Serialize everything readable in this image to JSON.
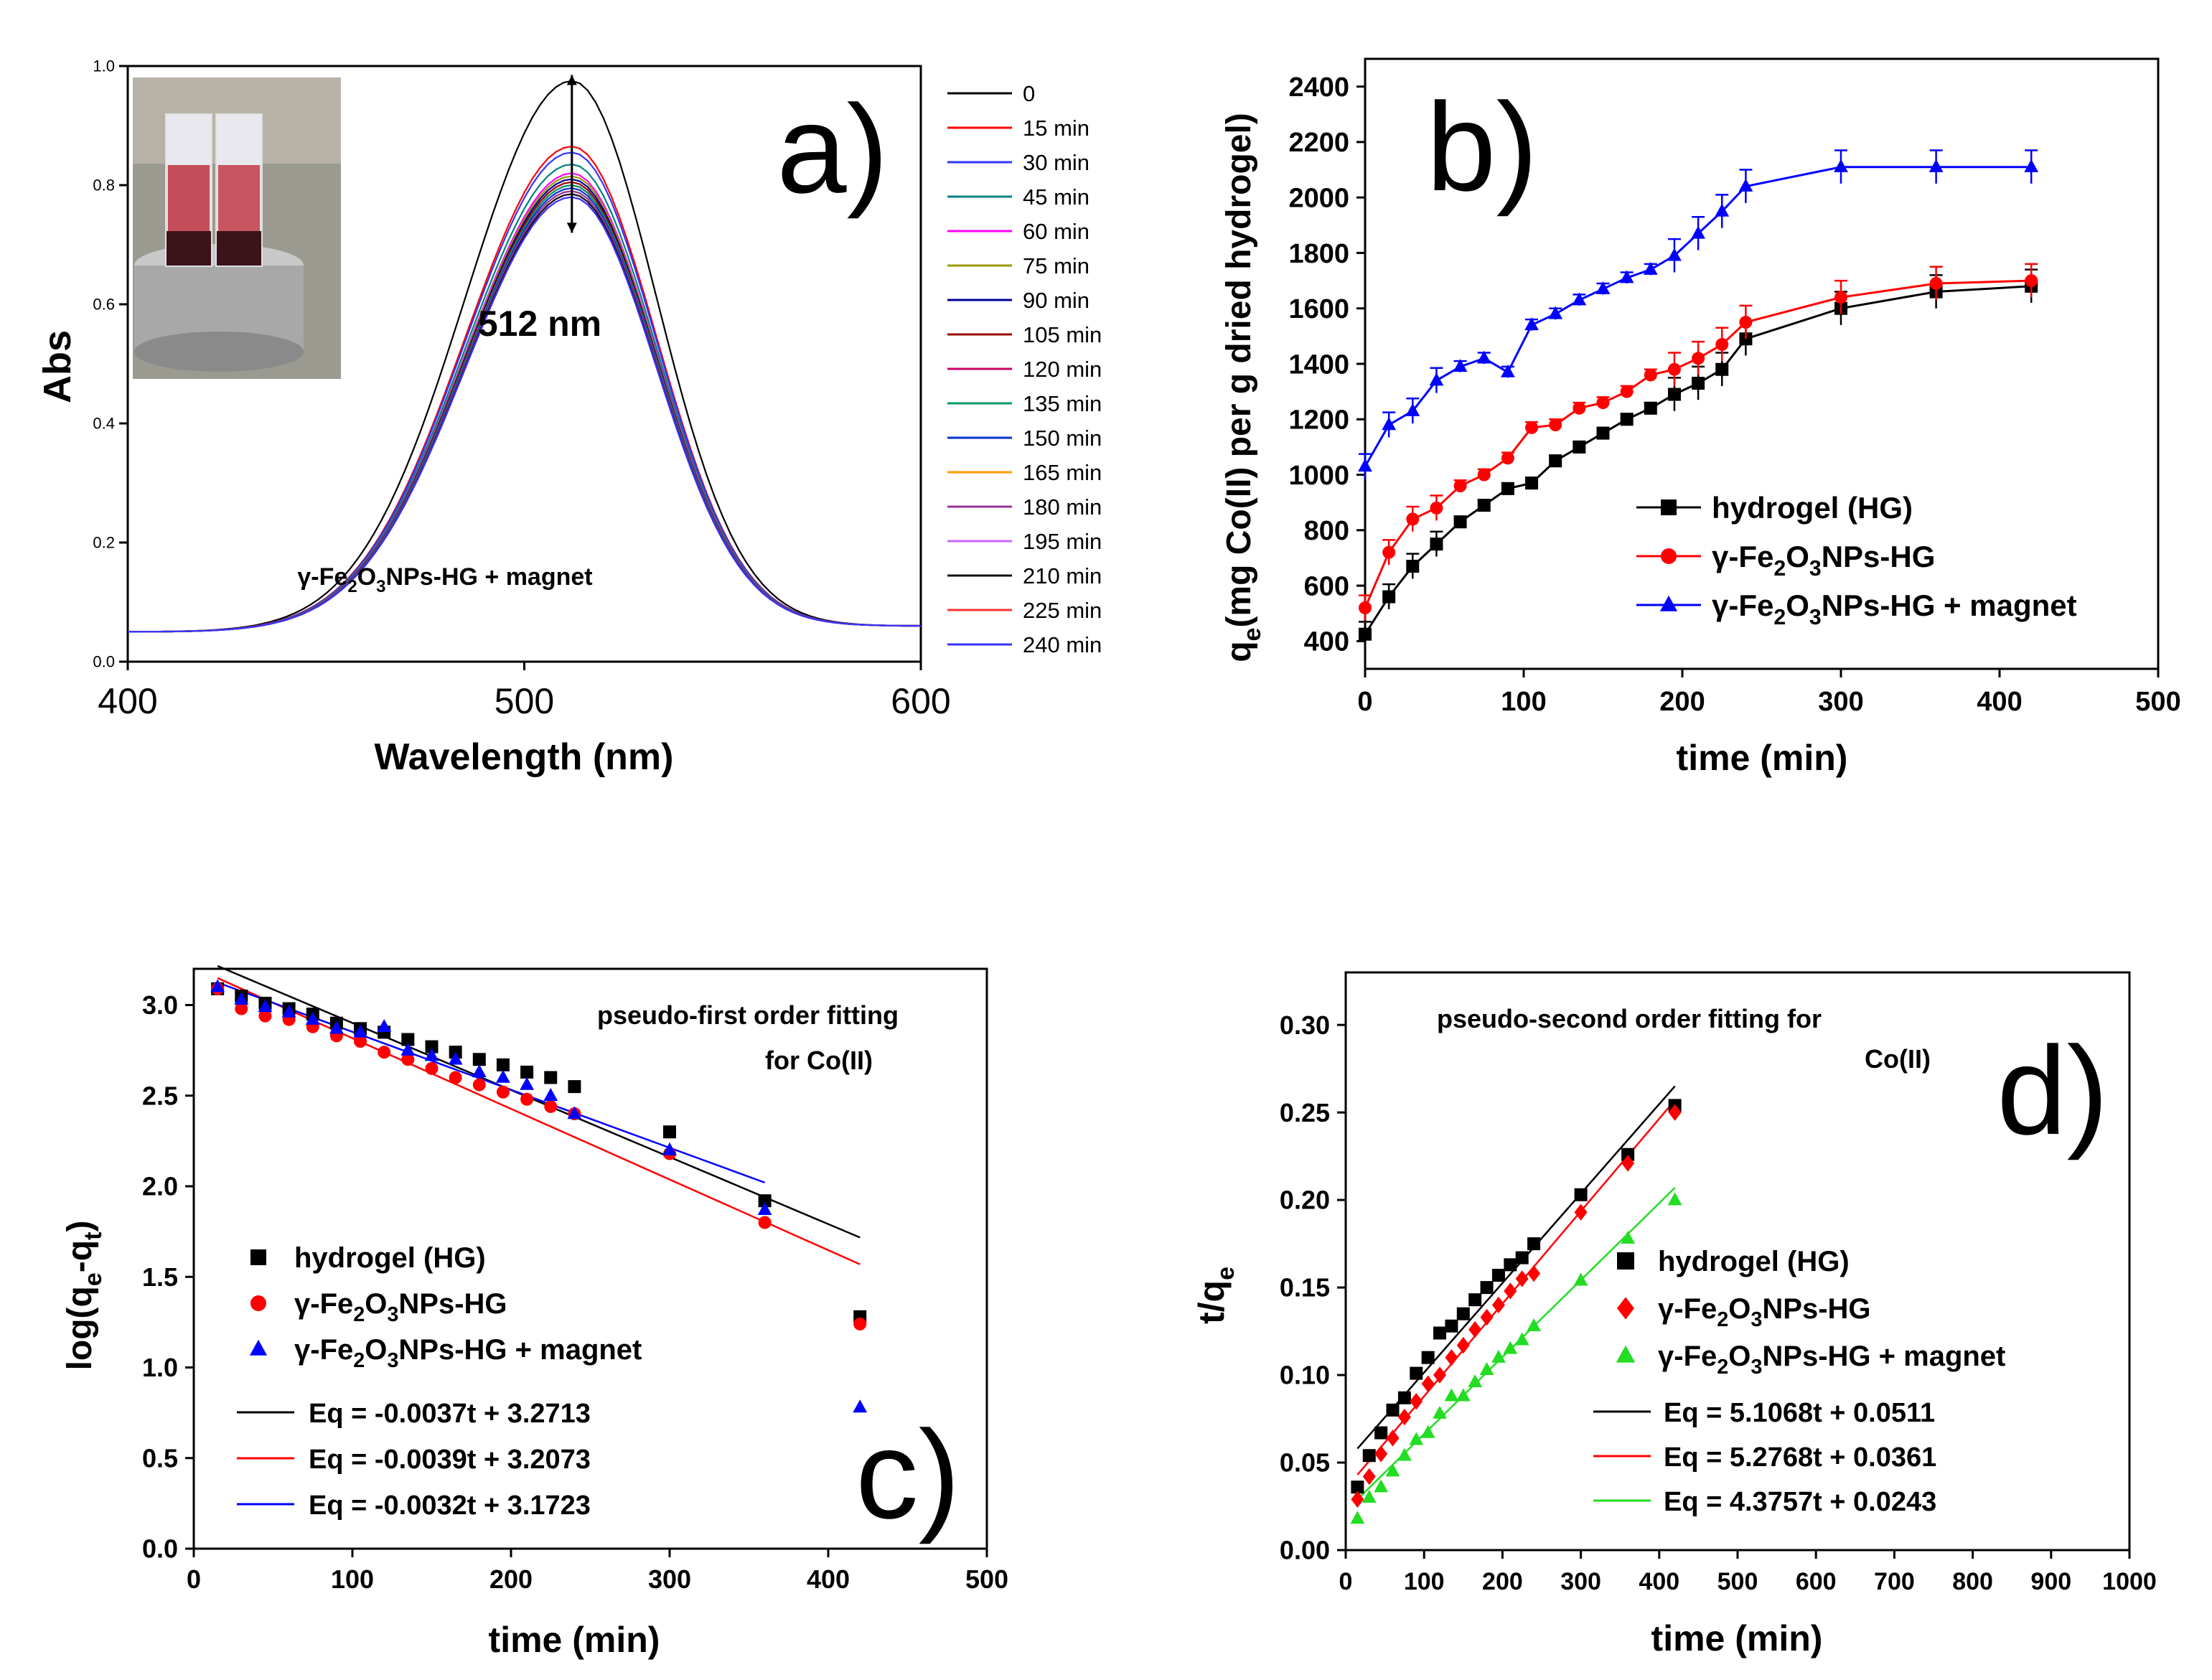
{
  "chart_data": [
    {
      "panel": "a",
      "type": "line",
      "panel_label": "a)",
      "xlabel": "Wavelength (nm)",
      "ylabel": "Abs",
      "xlim": [
        400,
        600
      ],
      "ylim": [
        0,
        1.0
      ],
      "xticks": [
        400,
        500,
        600
      ],
      "yticks": [
        0.0,
        0.2,
        0.4,
        0.6,
        0.8,
        1.0
      ],
      "peak_wavelength": 512,
      "peak_label": "512 nm",
      "annotation": "γ-Fe₂O₃NPs-HG + magnet",
      "inset_photo": "cuvettes-on-magnet-photo",
      "legend": [
        "0",
        "15 min",
        "30 min",
        "45 min",
        "60 min",
        "75 min",
        "90 min",
        "105 min",
        "120 min",
        "135 min",
        "150 min",
        "165 min",
        "180 min",
        "195 min",
        "210 min",
        "225 min",
        "240 min"
      ],
      "colors": [
        "#000000",
        "#ff0000",
        "#3333ff",
        "#008080",
        "#ff00ff",
        "#999900",
        "#000099",
        "#990000",
        "#cc0066",
        "#009966",
        "#0033cc",
        "#ff9900",
        "#993399",
        "#cc66ff",
        "#111111",
        "#ff3333",
        "#3333ff"
      ],
      "peak_values": [
        0.975,
        0.865,
        0.855,
        0.835,
        0.82,
        0.815,
        0.81,
        0.805,
        0.8,
        0.8,
        0.795,
        0.79,
        0.79,
        0.785,
        0.785,
        0.78,
        0.78
      ],
      "baseline_left": 0.05,
      "baseline_right": 0.06
    },
    {
      "panel": "b",
      "type": "line",
      "panel_label": "b)",
      "xlabel": "time (min)",
      "ylabel": "qe(mg Co(II) per g dried hydrogel)",
      "ylabel_main": "q",
      "ylabel_sub": "e",
      "ylabel_rest": "(mg Co(II) per g dried hydrogel)",
      "xlim": [
        0,
        500
      ],
      "ylim": [
        300,
        2500
      ],
      "xticks": [
        0,
        100,
        200,
        300,
        400,
        500
      ],
      "yticks": [
        400,
        600,
        800,
        1000,
        1200,
        1400,
        1600,
        1800,
        2000,
        2200,
        2400
      ],
      "series": [
        {
          "name": "hydrogel (HG)",
          "color": "#000000",
          "marker": "square",
          "x": [
            0,
            15,
            30,
            45,
            60,
            75,
            90,
            105,
            120,
            135,
            150,
            165,
            180,
            195,
            210,
            225,
            240,
            300,
            360,
            420
          ],
          "y": [
            425,
            560,
            670,
            750,
            830,
            890,
            950,
            970,
            1050,
            1100,
            1150,
            1200,
            1240,
            1290,
            1330,
            1380,
            1490,
            1600,
            1660,
            1680
          ]
        },
        {
          "name": "γ-Fe2O3NPs-HG",
          "color": "#ff0000",
          "marker": "circle",
          "x": [
            0,
            15,
            30,
            45,
            60,
            75,
            90,
            105,
            120,
            135,
            150,
            165,
            180,
            195,
            210,
            225,
            240,
            300,
            360,
            420
          ],
          "y": [
            520,
            720,
            840,
            880,
            960,
            1000,
            1060,
            1170,
            1180,
            1240,
            1260,
            1300,
            1360,
            1380,
            1420,
            1470,
            1550,
            1640,
            1690,
            1700
          ]
        },
        {
          "name": "γ-Fe2O3NPs-HG + magnet",
          "color": "#0000ff",
          "marker": "triangle",
          "x": [
            0,
            15,
            30,
            45,
            60,
            75,
            90,
            105,
            120,
            135,
            150,
            165,
            180,
            195,
            210,
            225,
            240,
            300,
            360,
            420
          ],
          "y": [
            1030,
            1180,
            1230,
            1340,
            1390,
            1420,
            1370,
            1540,
            1580,
            1630,
            1670,
            1710,
            1740,
            1790,
            1870,
            1950,
            2040,
            2110,
            2110,
            2110
          ]
        }
      ]
    },
    {
      "panel": "c",
      "type": "scatter",
      "panel_label": "c)",
      "xlabel": "time (min)",
      "ylabel": "log(qe-qt)",
      "ylabel_prefix": "log(q",
      "ylabel_sub1": "e",
      "ylabel_mid": "-q",
      "ylabel_sub2": "t",
      "ylabel_suffix": ")",
      "title_line1": "pseudo-first order fitting",
      "title_line2": "for Co(II)",
      "xlim": [
        0,
        500
      ],
      "ylim": [
        0,
        3.2
      ],
      "xticks": [
        0,
        100,
        200,
        300,
        400,
        500
      ],
      "yticks": [
        0.0,
        0.5,
        1.0,
        1.5,
        2.0,
        2.5,
        3.0
      ],
      "series": [
        {
          "name": "hydrogel (HG)",
          "color": "#000000",
          "marker": "square",
          "x": [
            15,
            30,
            45,
            60,
            75,
            90,
            105,
            120,
            135,
            150,
            165,
            180,
            195,
            210,
            225,
            240,
            300,
            360,
            420
          ],
          "y": [
            3.09,
            3.05,
            3.01,
            2.98,
            2.95,
            2.9,
            2.87,
            2.85,
            2.81,
            2.77,
            2.74,
            2.7,
            2.67,
            2.63,
            2.6,
            2.55,
            2.3,
            1.92,
            1.28
          ]
        },
        {
          "name": "γ-Fe2O3NPs-HG",
          "color": "#ff0000",
          "marker": "circle",
          "x": [
            15,
            30,
            45,
            60,
            75,
            90,
            105,
            120,
            135,
            150,
            165,
            180,
            195,
            210,
            225,
            240,
            300,
            360,
            420
          ],
          "y": [
            3.09,
            2.98,
            2.94,
            2.92,
            2.88,
            2.83,
            2.8,
            2.74,
            2.7,
            2.65,
            2.6,
            2.56,
            2.52,
            2.48,
            2.44,
            2.4,
            2.18,
            1.8,
            1.24
          ]
        },
        {
          "name": "γ-Fe2O3NPs-HG + magnet",
          "color": "#0000ff",
          "marker": "triangle",
          "x": [
            15,
            30,
            45,
            60,
            75,
            90,
            105,
            120,
            135,
            150,
            165,
            180,
            195,
            210,
            225,
            240,
            300,
            360,
            420
          ],
          "y": [
            3.1,
            3.03,
            2.99,
            2.96,
            2.92,
            2.87,
            2.85,
            2.88,
            2.75,
            2.72,
            2.7,
            2.63,
            2.6,
            2.56,
            2.5,
            2.4,
            2.2,
            1.87,
            0.78
          ]
        }
      ],
      "fits": [
        {
          "label": "Eq = -0.0037t + 3.2713",
          "slope": -0.0037,
          "intercept": 3.2713,
          "x": [
            15,
            420
          ],
          "color": "#000000"
        },
        {
          "label": "Eq = -0.0039t + 3.2073",
          "slope": -0.0039,
          "intercept": 3.2073,
          "x": [
            15,
            420
          ],
          "color": "#ff0000"
        },
        {
          "label": "Eq = -0.0032t + 3.1723",
          "slope": -0.0032,
          "intercept": 3.1723,
          "x": [
            15,
            360
          ],
          "color": "#0000ff"
        }
      ]
    },
    {
      "panel": "d",
      "type": "scatter",
      "panel_label": "d)",
      "xlabel": "time (min)",
      "ylabel": "t/qe",
      "ylabel_main": "t/q",
      "ylabel_sub": "e",
      "title_line1": "pseudo-second order fitting  for",
      "title_line2": "Co(II)",
      "xlim": [
        0,
        1000
      ],
      "ylim": [
        0,
        0.33
      ],
      "xticks": [
        0,
        100,
        200,
        300,
        400,
        500,
        600,
        700,
        800,
        900,
        1000
      ],
      "yticks": [
        0.0,
        0.05,
        0.1,
        0.15,
        0.2,
        0.25,
        0.3
      ],
      "series": [
        {
          "name": "hydrogel (HG)",
          "color": "#000000",
          "marker": "square",
          "x": [
            15,
            30,
            45,
            60,
            75,
            90,
            105,
            120,
            135,
            150,
            165,
            180,
            195,
            210,
            225,
            240,
            300,
            360,
            420
          ],
          "y": [
            0.036,
            0.054,
            0.067,
            0.08,
            0.087,
            0.101,
            0.11,
            0.124,
            0.128,
            0.135,
            0.143,
            0.15,
            0.157,
            0.163,
            0.167,
            0.175,
            0.203,
            0.226,
            0.254
          ]
        },
        {
          "name": "γ-Fe2O3NPs-HG",
          "color": "#ff0000",
          "marker": "diamond",
          "x": [
            15,
            30,
            45,
            60,
            75,
            90,
            105,
            120,
            135,
            150,
            165,
            180,
            195,
            210,
            225,
            240,
            300,
            360,
            420
          ],
          "y": [
            0.029,
            0.042,
            0.055,
            0.064,
            0.076,
            0.085,
            0.095,
            0.1,
            0.11,
            0.117,
            0.126,
            0.133,
            0.14,
            0.148,
            0.155,
            0.158,
            0.193,
            0.221,
            0.25
          ]
        },
        {
          "name": "γ-Fe2O3NPs-HG + magnet",
          "color": "#22dd22",
          "marker": "triangle",
          "x": [
            15,
            30,
            45,
            60,
            75,
            90,
            105,
            120,
            135,
            150,
            165,
            180,
            195,
            210,
            225,
            240,
            300,
            360,
            420
          ],
          "y": [
            0.018,
            0.03,
            0.036,
            0.045,
            0.054,
            0.063,
            0.067,
            0.078,
            0.088,
            0.088,
            0.096,
            0.103,
            0.11,
            0.115,
            0.12,
            0.128,
            0.154,
            0.178,
            0.2
          ]
        }
      ],
      "fits": [
        {
          "label": "Eq = 5.1068t + 0.0511",
          "color": "#000000",
          "x": [
            15,
            420
          ],
          "y": [
            0.058,
            0.265
          ]
        },
        {
          "label": "Eq = 5.2768t + 0.0361",
          "color": "#ff0000",
          "x": [
            15,
            420
          ],
          "y": [
            0.043,
            0.257
          ]
        },
        {
          "label": "Eq = 4.3757t + 0.0243",
          "color": "#22dd22",
          "x": [
            15,
            420
          ],
          "y": [
            0.029,
            0.207
          ]
        }
      ]
    }
  ]
}
